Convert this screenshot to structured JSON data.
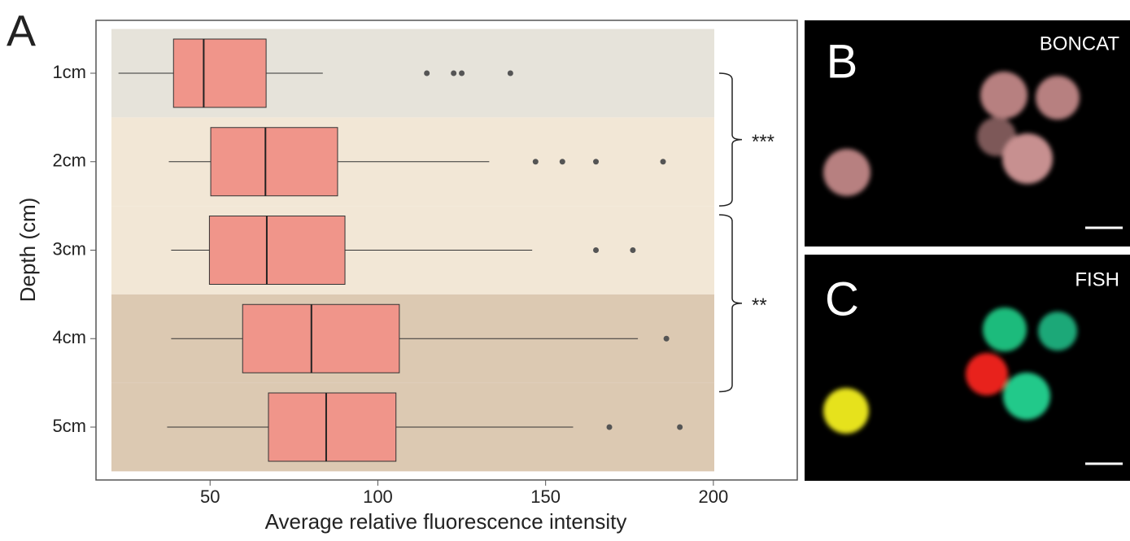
{
  "chart_data": {
    "type": "box",
    "panel_label": "A",
    "xlabel": "Average relative fluorescence intensity",
    "ylabel": "Depth (cm)",
    "categories": [
      "1cm",
      "2cm",
      "3cm",
      "4cm",
      "5cm"
    ],
    "boxes": [
      {
        "min": 22.7,
        "q1": 39.1,
        "median": 48.1,
        "q3": 66.7,
        "max": 83.6,
        "outliers": [
          114.6,
          122.6,
          125,
          139.5
        ]
      },
      {
        "min": 37.7,
        "q1": 50.2,
        "median": 66.5,
        "q3": 88,
        "max": 133.2,
        "outliers": [
          147,
          155,
          165,
          185
        ]
      },
      {
        "min": 38.4,
        "q1": 49.8,
        "median": 66.9,
        "q3": 90.2,
        "max": 146,
        "outliers": [
          165,
          176
        ]
      },
      {
        "min": 38.4,
        "q1": 59.7,
        "median": 80.2,
        "q3": 106.4,
        "max": 177.5,
        "outliers": [
          186
        ]
      },
      {
        "min": 37.2,
        "q1": 67.4,
        "median": 84.6,
        "q3": 105.4,
        "max": 158.2,
        "outliers": [
          169,
          190
        ]
      }
    ],
    "color": "#f0958a",
    "band_colors": [
      "#e6e3da",
      "#f2e7d6",
      "#f2e7d6",
      "#dcc9b2",
      "#dcc9b2"
    ],
    "xlim": [
      16,
      225
    ],
    "xticks": [
      50,
      100,
      150,
      200
    ],
    "annotations": [
      {
        "label": "***"
      },
      {
        "label": "**"
      }
    ]
  },
  "panels": [
    {
      "label": "B",
      "caption": "BONCAT"
    },
    {
      "label": "C",
      "caption": "FISH"
    }
  ]
}
